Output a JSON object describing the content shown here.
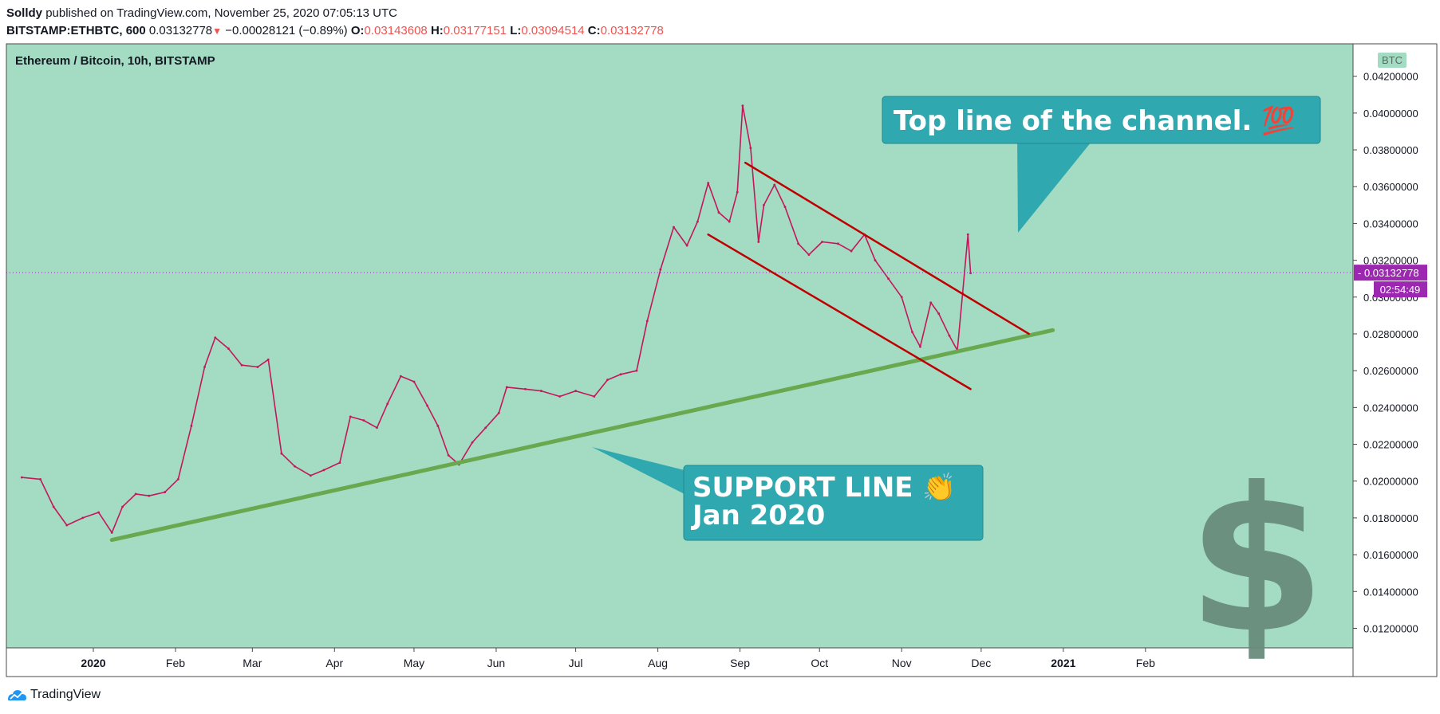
{
  "header": {
    "author": "Solldy",
    "published": "published on TradingView.com, November 25, 2020 07:05:13 UTC"
  },
  "ohlc": {
    "symbol": "BITSTAMP:ETHBTC, 600",
    "last": "0.03132778",
    "arrow": "▼",
    "change": "−0.00028121 (−0.89%)",
    "o_label": "O:",
    "o": "0.03143608",
    "h_label": "H:",
    "h": "0.03177151",
    "l_label": "L:",
    "l": "0.03094514",
    "c_label": "C:",
    "c": "0.03132778"
  },
  "chart_data": {
    "type": "line",
    "title": "Ethereum / Bitcoin, 10h, BITSTAMP",
    "unit": "BTC",
    "ylim": [
      0.0115,
      0.0435
    ],
    "y_ticks": [
      0.012,
      0.014,
      0.016,
      0.018,
      0.02,
      0.022,
      0.024,
      0.026,
      0.028,
      0.03,
      0.032,
      0.034,
      0.036,
      0.038,
      0.04,
      0.042
    ],
    "y_tick_labels": [
      "0.01200000",
      "0.01400000",
      "0.01600000",
      "0.01800000",
      "0.02000000",
      "0.02200000",
      "0.02400000",
      "0.02600000",
      "0.02800000",
      "0.03000000",
      "0.03200000",
      "0.03400000",
      "0.03600000",
      "0.03800000",
      "0.04000000",
      "0.04200000"
    ],
    "x_range": [
      "2019-12-05",
      "2021-02-28"
    ],
    "x_ticks": [
      {
        "date": "2020-01-01",
        "label": "2020",
        "bold": true
      },
      {
        "date": "2020-02-01",
        "label": "Feb"
      },
      {
        "date": "2020-03-01",
        "label": "Mar"
      },
      {
        "date": "2020-04-01",
        "label": "Apr"
      },
      {
        "date": "2020-05-01",
        "label": "May"
      },
      {
        "date": "2020-06-01",
        "label": "Jun"
      },
      {
        "date": "2020-07-01",
        "label": "Jul"
      },
      {
        "date": "2020-08-01",
        "label": "Aug"
      },
      {
        "date": "2020-09-01",
        "label": "Sep"
      },
      {
        "date": "2020-10-01",
        "label": "Oct"
      },
      {
        "date": "2020-11-01",
        "label": "Nov"
      },
      {
        "date": "2020-12-01",
        "label": "Dec"
      },
      {
        "date": "2021-01-01",
        "label": "2021",
        "bold": true
      },
      {
        "date": "2021-02-01",
        "label": "Feb"
      }
    ],
    "series": [
      {
        "values": [
          [
            "2019-12-05",
            0.0202
          ],
          [
            "2019-12-12",
            0.0201
          ],
          [
            "2019-12-17",
            0.0186
          ],
          [
            "2019-12-22",
            0.0176
          ],
          [
            "2019-12-28",
            0.018
          ],
          [
            "2020-01-03",
            0.0183
          ],
          [
            "2020-01-08",
            0.0172
          ],
          [
            "2020-01-12",
            0.0186
          ],
          [
            "2020-01-17",
            0.0193
          ],
          [
            "2020-01-22",
            0.0192
          ],
          [
            "2020-01-28",
            0.0194
          ],
          [
            "2020-02-02",
            0.0201
          ],
          [
            "2020-02-07",
            0.023
          ],
          [
            "2020-02-12",
            0.0262
          ],
          [
            "2020-02-16",
            0.0278
          ],
          [
            "2020-02-21",
            0.0272
          ],
          [
            "2020-02-26",
            0.0263
          ],
          [
            "2020-03-03",
            0.0262
          ],
          [
            "2020-03-07",
            0.0266
          ],
          [
            "2020-03-12",
            0.0215
          ],
          [
            "2020-03-17",
            0.0208
          ],
          [
            "2020-03-23",
            0.0203
          ],
          [
            "2020-03-28",
            0.0206
          ],
          [
            "2020-04-03",
            0.021
          ],
          [
            "2020-04-07",
            0.0235
          ],
          [
            "2020-04-12",
            0.0233
          ],
          [
            "2020-04-17",
            0.0229
          ],
          [
            "2020-04-21",
            0.0242
          ],
          [
            "2020-04-26",
            0.0257
          ],
          [
            "2020-05-01",
            0.0254
          ],
          [
            "2020-05-06",
            0.0241
          ],
          [
            "2020-05-10",
            0.023
          ],
          [
            "2020-05-14",
            0.0214
          ],
          [
            "2020-05-18",
            0.0209
          ],
          [
            "2020-05-23",
            0.0221
          ],
          [
            "2020-05-28",
            0.0229
          ],
          [
            "2020-06-02",
            0.0237
          ],
          [
            "2020-06-05",
            0.0251
          ],
          [
            "2020-06-12",
            0.025
          ],
          [
            "2020-06-18",
            0.0249
          ],
          [
            "2020-06-25",
            0.0246
          ],
          [
            "2020-07-01",
            0.0249
          ],
          [
            "2020-07-08",
            0.0246
          ],
          [
            "2020-07-13",
            0.0255
          ],
          [
            "2020-07-18",
            0.0258
          ],
          [
            "2020-07-24",
            0.026
          ],
          [
            "2020-07-28",
            0.0287
          ],
          [
            "2020-08-02",
            0.0315
          ],
          [
            "2020-08-07",
            0.0338
          ],
          [
            "2020-08-12",
            0.0328
          ],
          [
            "2020-08-16",
            0.0341
          ],
          [
            "2020-08-20",
            0.0362
          ],
          [
            "2020-08-24",
            0.0346
          ],
          [
            "2020-08-28",
            0.0341
          ],
          [
            "2020-08-31",
            0.0357
          ],
          [
            "2020-09-02",
            0.0404
          ],
          [
            "2020-09-05",
            0.0381
          ],
          [
            "2020-09-08",
            0.033
          ],
          [
            "2020-09-10",
            0.035
          ],
          [
            "2020-09-14",
            0.0361
          ],
          [
            "2020-09-18",
            0.0349
          ],
          [
            "2020-09-23",
            0.0329
          ],
          [
            "2020-09-27",
            0.0323
          ],
          [
            "2020-10-02",
            0.033
          ],
          [
            "2020-10-08",
            0.0329
          ],
          [
            "2020-10-13",
            0.0325
          ],
          [
            "2020-10-18",
            0.0334
          ],
          [
            "2020-10-22",
            0.032
          ],
          [
            "2020-10-27",
            0.031
          ],
          [
            "2020-11-01",
            0.03
          ],
          [
            "2020-11-05",
            0.0281
          ],
          [
            "2020-11-08",
            0.0273
          ],
          [
            "2020-11-12",
            0.0297
          ],
          [
            "2020-11-15",
            0.0291
          ],
          [
            "2020-11-19",
            0.0279
          ],
          [
            "2020-11-22",
            0.0271
          ],
          [
            "2020-11-24",
            0.0302
          ],
          [
            "2020-11-26",
            0.0334
          ],
          [
            "2020-11-27",
            0.0313
          ]
        ]
      }
    ],
    "last_price": {
      "value": 0.03132778,
      "label": "0.03132778",
      "countdown": "02:54:49"
    },
    "annotations": [
      {
        "kind": "trendline",
        "name": "support-line",
        "color": "#6aa84f",
        "from": [
          "2020-01-08",
          0.0168
        ],
        "to": [
          "2020-12-28",
          0.0282
        ]
      },
      {
        "kind": "trendline",
        "name": "channel-top-line",
        "color": "#c00000",
        "from": [
          "2020-09-03",
          0.0373
        ],
        "to": [
          "2020-12-19",
          0.028
        ]
      },
      {
        "kind": "trendline",
        "name": "channel-bottom-line",
        "color": "#c00000",
        "from": [
          "2020-08-20",
          0.0334
        ],
        "to": [
          "2020-11-27",
          0.025
        ]
      }
    ],
    "callouts": [
      {
        "name": "channel-callout",
        "lines": [
          "Top line of the channel. 💯"
        ]
      },
      {
        "name": "support-callout",
        "lines": [
          "SUPPORT LINE 👏",
          "Jan 2020"
        ]
      }
    ],
    "watermark": "$",
    "grid": false,
    "legend": "none"
  },
  "footer": {
    "brand": "TradingView"
  },
  "colors": {
    "plot_bg": "#a3dcc3",
    "candle": "#c2185b",
    "support": "#6aa84f",
    "channel": "#c00000",
    "callout": "#30a8b0",
    "price_tag": "#9c27b0",
    "watermark": "#6a8c7c"
  }
}
